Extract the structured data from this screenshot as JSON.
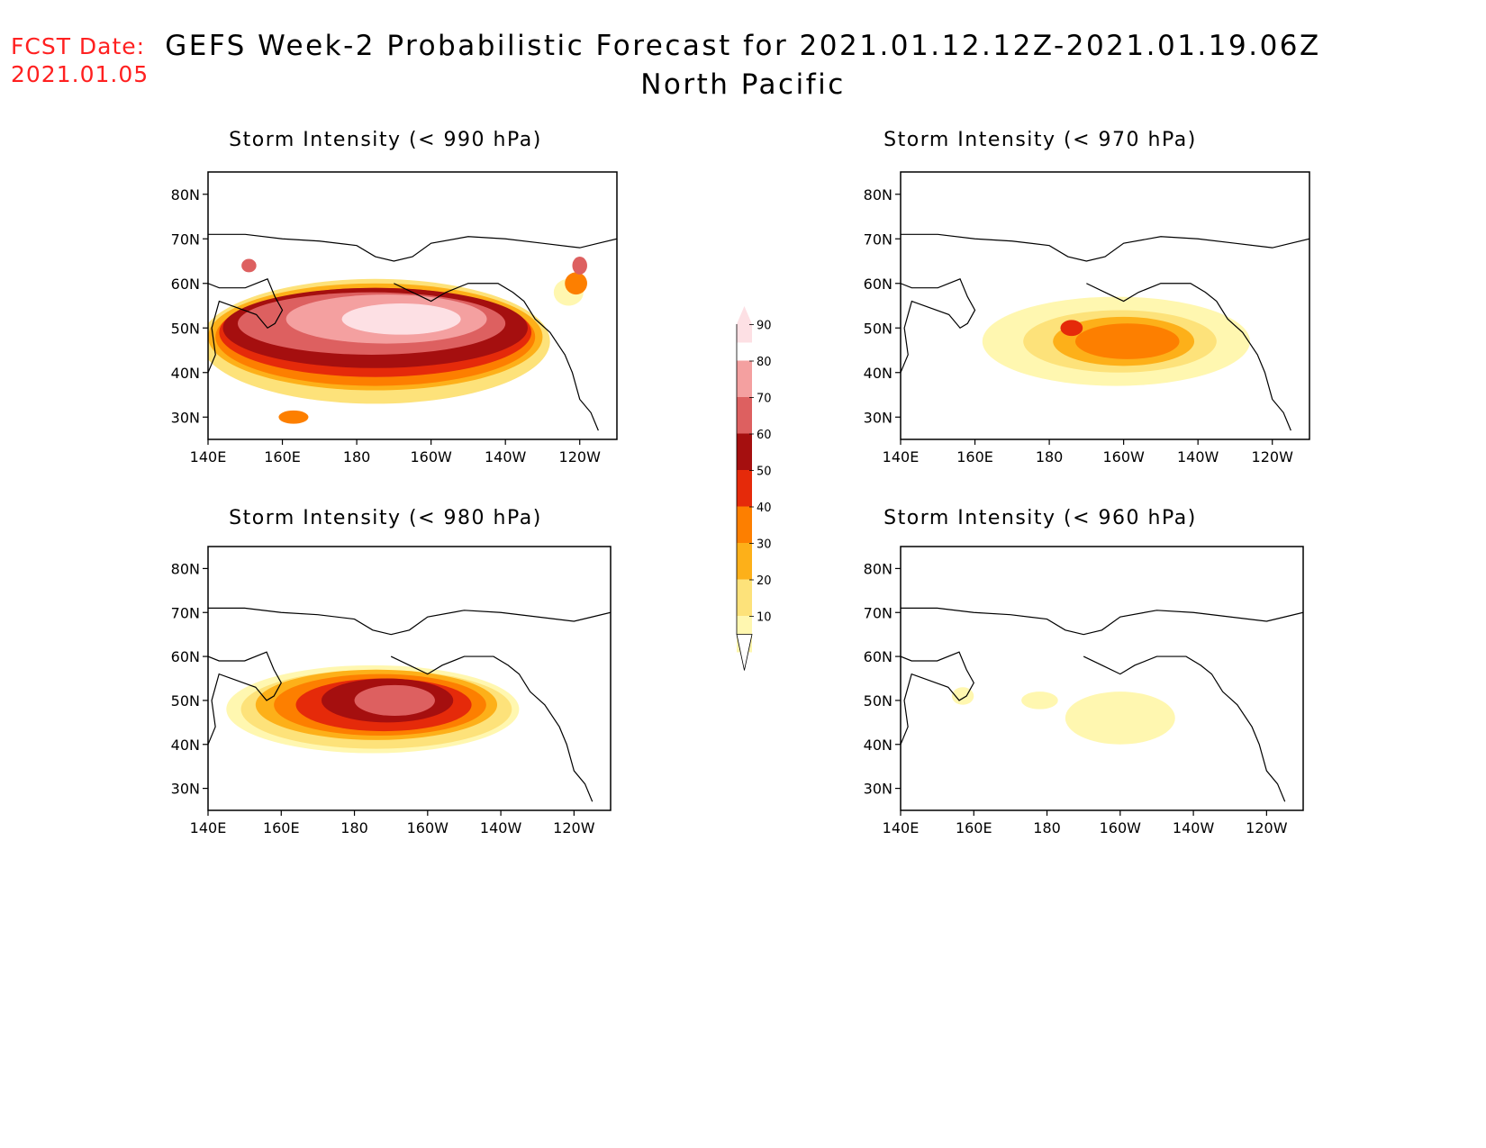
{
  "header": {
    "fcst_label": "FCST Date:",
    "fcst_date": "2021.01.05",
    "title_line1": "GEFS Week-2 Probabilistic Forecast for 2021.01.12.12Z-2021.01.19.06Z",
    "title_line2": "North Pacific"
  },
  "panels": [
    {
      "id": "p990",
      "title": "Storm Intensity (< 990 hPa)"
    },
    {
      "id": "p970",
      "title": "Storm Intensity (< 970 hPa)"
    },
    {
      "id": "p980",
      "title": "Storm Intensity (< 980 hPa)"
    },
    {
      "id": "p960",
      "title": "Storm Intensity (< 960 hPa)"
    }
  ],
  "map_axes": {
    "lat_labels": [
      "80N",
      "70N",
      "60N",
      "50N",
      "40N",
      "30N"
    ],
    "lat_values": [
      80,
      70,
      60,
      50,
      40,
      30
    ],
    "lon_labels": [
      "140E",
      "160E",
      "180",
      "160W",
      "140W",
      "120W"
    ],
    "lon_values": [
      140,
      160,
      180,
      200,
      220,
      240
    ],
    "lat_range": [
      25,
      85
    ],
    "lon_range": [
      140,
      250
    ]
  },
  "colorbar": {
    "levels": [
      "10",
      "20",
      "30",
      "40",
      "50",
      "60",
      "70",
      "80",
      "90"
    ],
    "colors": [
      "#fff7b0",
      "#fde27a",
      "#fdb019",
      "#fd7f00",
      "#e52a0a",
      "#a50f0f",
      "#dd6060",
      "#f4a0a0",
      "#fde0e4"
    ]
  }
}
